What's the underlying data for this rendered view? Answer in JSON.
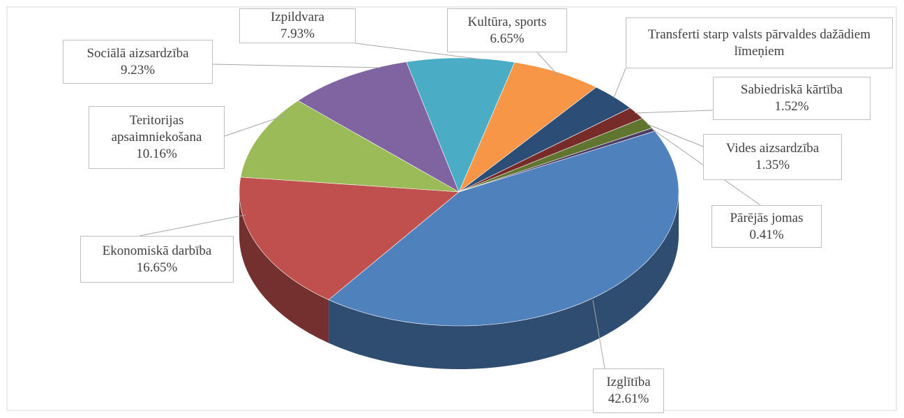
{
  "chart_data": {
    "type": "pie3d",
    "categories": [
      "Izglītība",
      "Ekonomiskā darbība",
      "Teritorijas apsaimniekošana",
      "Sociālā aizsardzība",
      "Izpildvara",
      "Kultūra, sports",
      "Transferti starp valsts pārvaldes dažādiem līmeņiem",
      "Sabiedriskā kārtība",
      "Vides aizsardzība",
      "Pārējās jomas"
    ],
    "values": [
      42.61,
      16.65,
      10.16,
      9.23,
      7.93,
      6.65,
      3.49,
      1.52,
      1.35,
      0.41
    ],
    "value_labels": [
      "42.61%",
      "16.65%",
      "10.16%",
      "9.23%",
      "7.93%",
      "6.65%",
      null,
      "1.52%",
      "1.35%",
      "0.41%"
    ],
    "colors": [
      "#4f81bd",
      "#c0504d",
      "#9bbb59",
      "#8064a2",
      "#4bacc6",
      "#f79646",
      "#2c4d75",
      "#772c2a",
      "#5f7530",
      "#4d3b62"
    ]
  }
}
